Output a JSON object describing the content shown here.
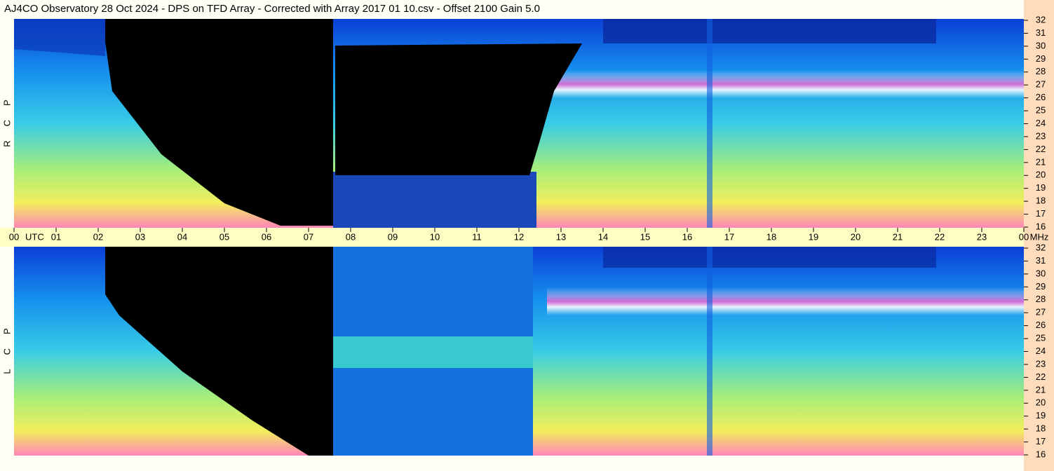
{
  "chart_data": {
    "type": "spectrogram",
    "title": "AJ4CO Observatory  28 Oct 2024  -  DPS on TFD Array  -  Corrected with Array 2017 01 10.csv  -  Offset 2100  Gain 5.0",
    "x_unit": "UTC",
    "y_unit": "MHz",
    "xlim": [
      0,
      24
    ],
    "xticks": [
      {
        "value": 0,
        "label": "00"
      },
      {
        "value": 1,
        "label": "01"
      },
      {
        "value": 2,
        "label": "02"
      },
      {
        "value": 3,
        "label": "03"
      },
      {
        "value": 4,
        "label": "04"
      },
      {
        "value": 5,
        "label": "05"
      },
      {
        "value": 6,
        "label": "06"
      },
      {
        "value": 7,
        "label": "07"
      },
      {
        "value": 8,
        "label": "08"
      },
      {
        "value": 9,
        "label": "09"
      },
      {
        "value": 10,
        "label": "10"
      },
      {
        "value": 11,
        "label": "11"
      },
      {
        "value": 12,
        "label": "12"
      },
      {
        "value": 13,
        "label": "13"
      },
      {
        "value": 14,
        "label": "14"
      },
      {
        "value": 15,
        "label": "15"
      },
      {
        "value": 16,
        "label": "16"
      },
      {
        "value": 17,
        "label": "17"
      },
      {
        "value": 18,
        "label": "18"
      },
      {
        "value": 19,
        "label": "19"
      },
      {
        "value": 20,
        "label": "20"
      },
      {
        "value": 21,
        "label": "21"
      },
      {
        "value": 22,
        "label": "22"
      },
      {
        "value": 23,
        "label": "23"
      },
      {
        "value": 24,
        "label": "00"
      }
    ],
    "panels": [
      {
        "label": "RCP",
        "ylim": [
          16,
          32
        ],
        "yticks": [
          16,
          17,
          18,
          19,
          20,
          21,
          22,
          23,
          24,
          25,
          26,
          27,
          28,
          29,
          30,
          31,
          32
        ]
      },
      {
        "label": "LCP",
        "ylim": [
          16,
          32
        ],
        "yticks": [
          16,
          17,
          18,
          19,
          20,
          21,
          22,
          23,
          24,
          25,
          26,
          27,
          28,
          29,
          30,
          31,
          32
        ]
      }
    ]
  }
}
